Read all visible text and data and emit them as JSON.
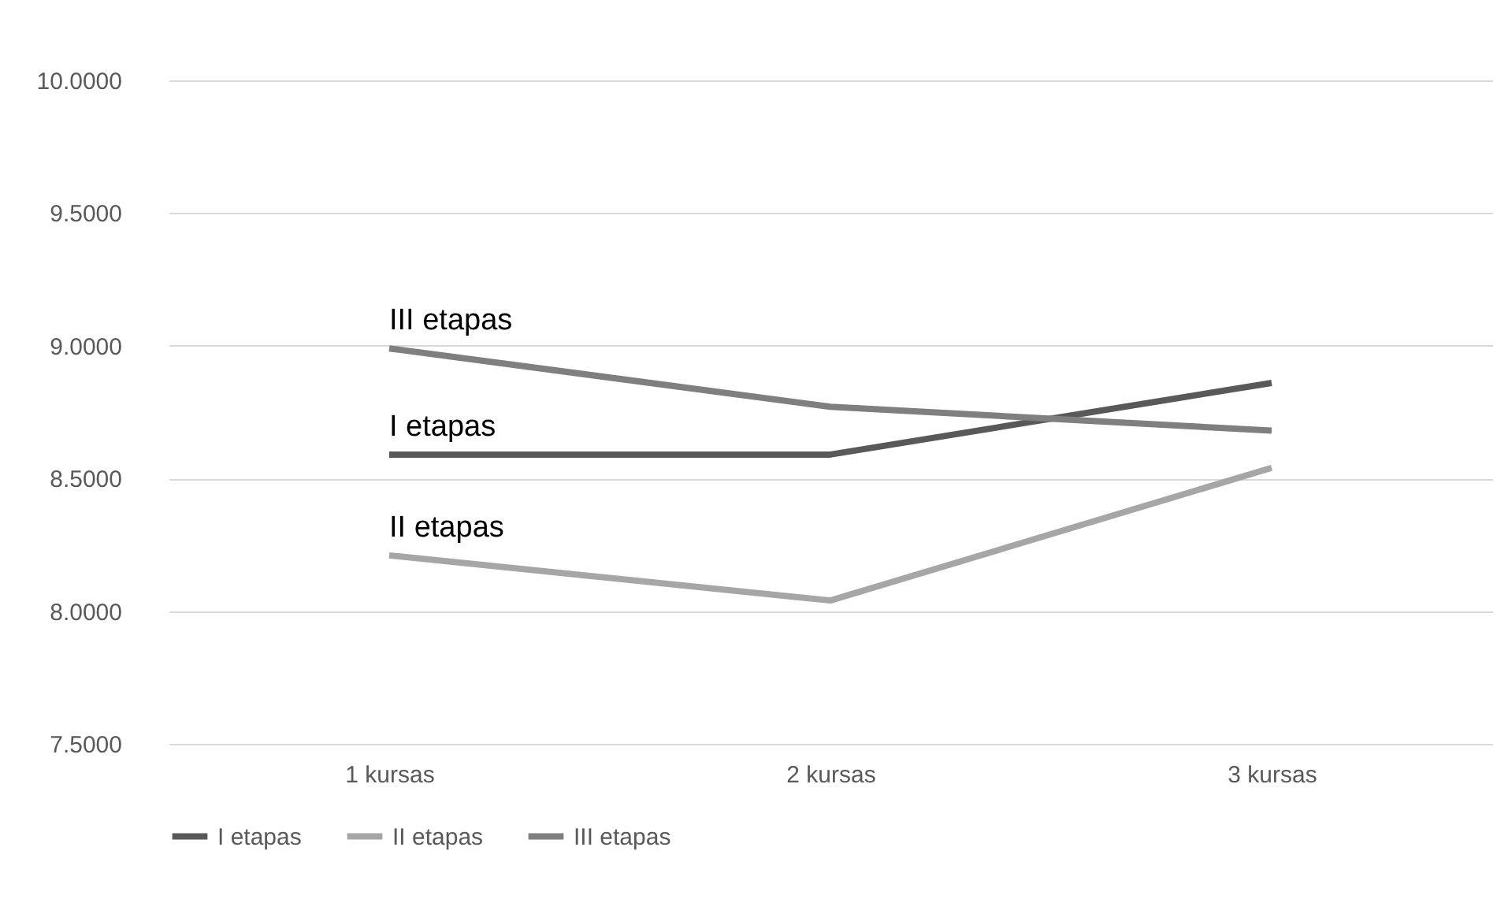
{
  "chart_data": {
    "type": "line",
    "categories": [
      "1 kursas",
      "2 kursas",
      "3 kursas"
    ],
    "series": [
      {
        "name": "I etapas",
        "color": "#595959",
        "values": [
          8.59,
          8.59,
          8.86
        ]
      },
      {
        "name": "II etapas",
        "color": "#a6a6a6",
        "values": [
          8.21,
          8.04,
          8.54
        ]
      },
      {
        "name": "III etapas",
        "color": "#7f7f7f",
        "values": [
          8.99,
          8.77,
          8.68
        ]
      }
    ],
    "ylim": [
      7.5,
      10
    ],
    "yticks": [
      {
        "value": 7.5,
        "label": "7.5000"
      },
      {
        "value": 8,
        "label": "8.0000"
      },
      {
        "value": 8.5,
        "label": "8.5000"
      },
      {
        "value": 9,
        "label": "9.0000"
      },
      {
        "value": 9.5,
        "label": "9.5000"
      },
      {
        "value": 10,
        "label": "10.0000"
      }
    ],
    "grid": "y",
    "legend": "bottom",
    "marker": "none",
    "line_style": "solid",
    "annotations": [
      {
        "text": "III etapas",
        "x": "1 kursas",
        "y": 8.99
      },
      {
        "text": "I etapas",
        "x": "1 kursas",
        "y": 8.59
      },
      {
        "text": "II etapas",
        "x": "1 kursas",
        "y": 8.21
      }
    ]
  }
}
